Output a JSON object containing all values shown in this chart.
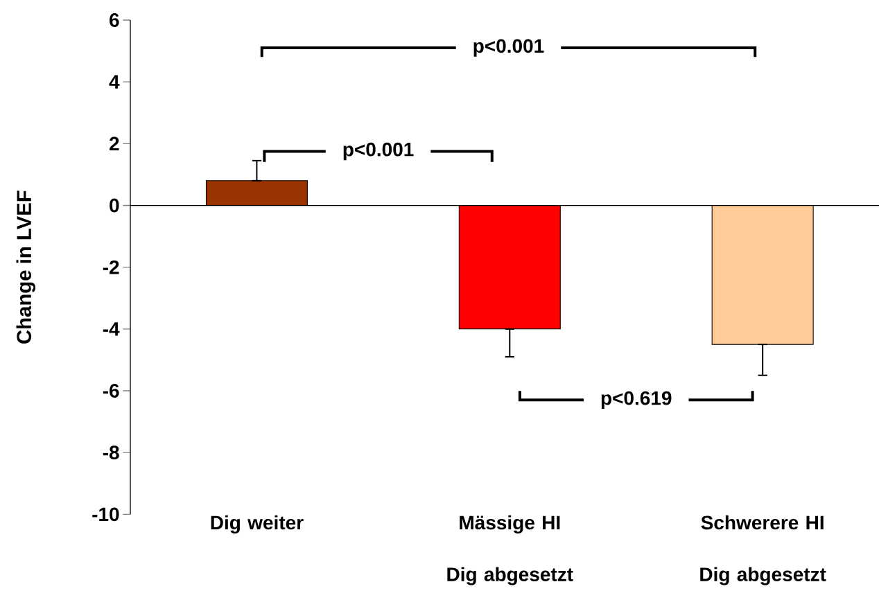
{
  "chart_data": {
    "type": "bar",
    "ylabel": "Change in LVEF",
    "categories": [
      "Dig weiter",
      "Mässige HI Dig abgesetzt",
      "Schwerere HI Dig abgesetzt"
    ],
    "values": [
      0.8,
      -4.0,
      -4.5
    ],
    "colors": [
      "#993300",
      "#ff0000",
      "#ffcc99"
    ],
    "errors": [
      [
        0.8,
        1.45
      ],
      [
        -4.9,
        -4.0
      ],
      [
        -5.5,
        -4.5
      ]
    ],
    "ylim": [
      -10,
      6
    ],
    "yticks": [
      -10,
      -8,
      -6,
      -4,
      -2,
      0,
      2,
      4,
      6
    ],
    "annotations": [
      "p<0.001",
      "p<0.001",
      "p<0.619"
    ]
  }
}
